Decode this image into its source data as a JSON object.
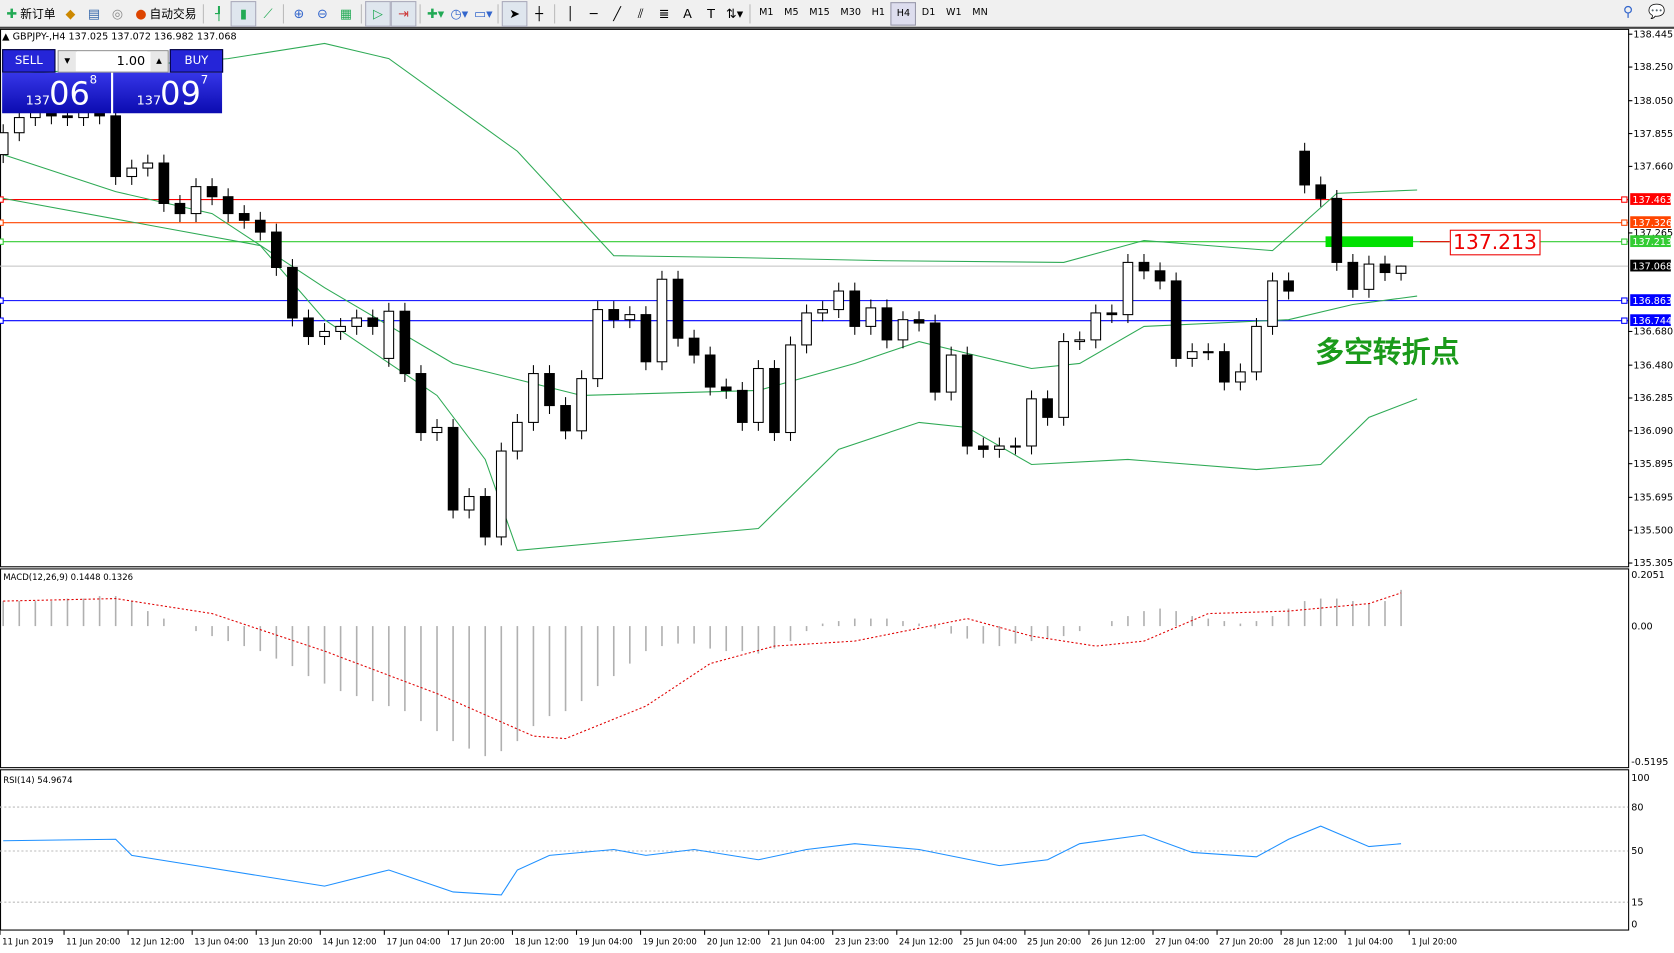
{
  "toolbar": {
    "new_order": "新订单",
    "auto_trading": "自动交易",
    "icons": [
      "new-order-icon",
      "market-watch-icon",
      "navigator-icon",
      "signals-icon",
      "auto-trading-icon",
      "bar-chart-icon",
      "candle-chart-icon",
      "line-chart-icon",
      "zoom-in-icon",
      "zoom-out-icon",
      "tile-windows-icon",
      "autoscroll-icon",
      "chart-shift-icon",
      "indicators-icon",
      "periods-icon",
      "templates-icon",
      "cursor-icon",
      "crosshair-icon",
      "vertical-line-icon",
      "horizontal-line-icon",
      "trendline-icon",
      "equidistant-channel-icon",
      "fibonacci-icon",
      "text-icon",
      "text-label-icon",
      "arrows-icon"
    ],
    "text_tool": "A",
    "label_tool": "T",
    "timeframes": [
      "M1",
      "M5",
      "M15",
      "M30",
      "H1",
      "H4",
      "D1",
      "W1",
      "MN"
    ],
    "active_timeframe": "H4"
  },
  "symbol_bar": "GBPJPY-,H4  137.025 137.072 136.982 137.068",
  "trade_panel": {
    "sell": "SELL",
    "buy": "BUY",
    "lot": "1.00",
    "bid_small": "137",
    "bid_big": "06",
    "bid_pip": "8",
    "ask_small": "137",
    "ask_big": "09",
    "ask_pip": "7"
  },
  "annotation": {
    "text": "多空转折点",
    "price_label": "137.213",
    "color": "#1a9a1a"
  },
  "colors": {
    "bull": "#ffffff",
    "bear": "#000000",
    "bands": "#2eaa55",
    "macd_hist": "#b0b0b0",
    "macd_signal": "#e00000",
    "rsi": "#1e90ff"
  },
  "chart_data": [
    {
      "type": "candlestick",
      "symbol": "GBPJPY-",
      "timeframe": "H4",
      "ylim": [
        135.305,
        138.445
      ],
      "price_ticks": [
        "138.445",
        "138.250",
        "138.050",
        "137.855",
        "137.660",
        "137.265",
        "136.680",
        "136.480",
        "136.285",
        "136.090",
        "135.895",
        "135.695",
        "135.500",
        "135.305"
      ],
      "time_labels": [
        "11 Jun 2019",
        "11 Jun 20:00",
        "12 Jun 12:00",
        "13 Jun 04:00",
        "13 Jun 20:00",
        "14 Jun 12:00",
        "17 Jun 04:00",
        "17 Jun 20:00",
        "18 Jun 12:00",
        "19 Jun 04:00",
        "19 Jun 20:00",
        "20 Jun 12:00",
        "21 Jun 04:00",
        "23 Jun 23:00",
        "24 Jun 12:00",
        "25 Jun 04:00",
        "25 Jun 20:00",
        "26 Jun 12:00",
        "27 Jun 04:00",
        "27 Jun 20:00",
        "28 Jun 12:00",
        "1 Jul 04:00",
        "1 Jul 20:00"
      ],
      "close": [
        137.86,
        137.95,
        137.98,
        137.96,
        137.95,
        137.98,
        137.96,
        137.6,
        137.65,
        137.68,
        137.44,
        137.38,
        137.54,
        137.48,
        137.38,
        137.34,
        137.27,
        137.06,
        136.76,
        136.65,
        136.68,
        136.71,
        136.76,
        136.71,
        136.8,
        136.43,
        136.08,
        136.11,
        135.62,
        135.7,
        135.46,
        135.97,
        136.14,
        136.43,
        136.24,
        136.09,
        136.4,
        136.81,
        136.75,
        136.78,
        136.5,
        136.99,
        136.64,
        136.54,
        136.35,
        136.33,
        136.14,
        136.46,
        136.08,
        136.6,
        136.79,
        136.81,
        136.92,
        136.71,
        136.82,
        136.63,
        136.75,
        136.73,
        136.32,
        136.54,
        136.0,
        135.98,
        136.0,
        136.0,
        136.28,
        136.17,
        136.62,
        136.63,
        136.79,
        136.78,
        137.09,
        137.04,
        136.98,
        136.52,
        136.56,
        136.56,
        136.38,
        136.44,
        136.71,
        136.98,
        136.92,
        137.55,
        137.47,
        137.09,
        136.93,
        137.08,
        137.03,
        137.068
      ],
      "open_overrides": {
        "0": 137.73,
        "24": 136.52,
        "81": 137.75,
        "87": 137.025
      },
      "last_bar": {
        "open": 137.025,
        "high": 137.072,
        "low": 136.982,
        "close": 137.068
      },
      "bollinger_upper": [
        [
          0,
          138.2
        ],
        [
          7,
          138.25
        ],
        [
          14,
          138.3
        ],
        [
          20,
          138.39
        ],
        [
          24,
          138.3
        ],
        [
          32,
          137.75
        ],
        [
          38,
          137.13
        ],
        [
          45,
          137.12
        ],
        [
          55,
          137.1
        ],
        [
          66,
          137.09
        ],
        [
          71,
          137.22
        ],
        [
          79,
          137.16
        ],
        [
          83,
          137.5
        ],
        [
          88,
          137.52
        ]
      ],
      "bollinger_middle": [
        [
          0,
          137.73
        ],
        [
          7,
          137.51
        ],
        [
          13,
          137.38
        ],
        [
          20,
          136.94
        ],
        [
          28,
          136.49
        ],
        [
          36,
          136.3
        ],
        [
          47,
          136.33
        ],
        [
          53,
          136.49
        ],
        [
          57,
          136.62
        ],
        [
          60,
          136.55
        ],
        [
          64,
          136.46
        ],
        [
          67,
          136.49
        ],
        [
          71,
          136.71
        ],
        [
          80,
          136.75
        ],
        [
          84,
          136.84
        ],
        [
          88,
          136.89
        ]
      ],
      "bollinger_lower": [
        [
          0,
          137.47
        ],
        [
          16,
          137.19
        ],
        [
          20,
          136.75
        ],
        [
          27,
          136.3
        ],
        [
          30,
          135.92
        ],
        [
          32,
          135.38
        ],
        [
          47,
          135.51
        ],
        [
          52,
          135.98
        ],
        [
          57,
          136.14
        ],
        [
          60,
          136.11
        ],
        [
          64,
          135.89
        ],
        [
          70,
          135.92
        ],
        [
          78,
          135.86
        ],
        [
          82,
          135.89
        ],
        [
          85,
          136.17
        ],
        [
          88,
          136.28
        ]
      ],
      "hlines": [
        {
          "price": 137.463,
          "label": "137.463",
          "color": "#ff0000"
        },
        {
          "price": 137.326,
          "label": "137.326",
          "color": "#ff4500"
        },
        {
          "price": 137.213,
          "label": "137.213",
          "color": "#33cc33"
        },
        {
          "price": 137.068,
          "label": "137.068",
          "color": "#000000",
          "line": "#c0c0c0"
        },
        {
          "price": 136.863,
          "label": "136.863",
          "color": "#0000ff"
        },
        {
          "price": 136.744,
          "label": "136.744",
          "color": "#0000ff"
        }
      ]
    },
    {
      "type": "bar",
      "title": "MACD(12,26,9) 0.1448 0.1326",
      "ylim": [
        -0.5195,
        0.2051
      ],
      "ticks": [
        "0.2051",
        "0.00",
        "-0.5195"
      ],
      "histogram": [
        0.1,
        0.1,
        0.1,
        0.1,
        0.11,
        0.11,
        0.12,
        0.12,
        0.1,
        0.06,
        0.03,
        0.0,
        -0.02,
        -0.04,
        -0.06,
        -0.08,
        -0.1,
        -0.13,
        -0.16,
        -0.2,
        -0.23,
        -0.26,
        -0.28,
        -0.3,
        -0.32,
        -0.34,
        -0.38,
        -0.42,
        -0.46,
        -0.49,
        -0.52,
        -0.5,
        -0.46,
        -0.4,
        -0.36,
        -0.34,
        -0.3,
        -0.24,
        -0.2,
        -0.15,
        -0.1,
        -0.08,
        -0.07,
        -0.07,
        -0.09,
        -0.1,
        -0.1,
        -0.11,
        -0.09,
        -0.06,
        -0.02,
        0.01,
        0.02,
        0.03,
        0.03,
        0.03,
        0.02,
        0.01,
        -0.01,
        -0.03,
        -0.05,
        -0.07,
        -0.08,
        -0.07,
        -0.06,
        -0.05,
        -0.04,
        -0.02,
        0.0,
        0.02,
        0.04,
        0.06,
        0.07,
        0.06,
        0.04,
        0.03,
        0.02,
        0.01,
        0.02,
        0.04,
        0.07,
        0.1,
        0.11,
        0.11,
        0.1,
        0.09,
        0.1,
        0.1448
      ],
      "signal": [
        [
          0,
          0.1
        ],
        [
          7,
          0.11
        ],
        [
          13,
          0.05
        ],
        [
          20,
          -0.1
        ],
        [
          27,
          -0.27
        ],
        [
          33,
          -0.44
        ],
        [
          35,
          -0.45
        ],
        [
          40,
          -0.32
        ],
        [
          44,
          -0.15
        ],
        [
          48,
          -0.08
        ],
        [
          53,
          -0.06
        ],
        [
          60,
          0.03
        ],
        [
          64,
          -0.04
        ],
        [
          68,
          -0.08
        ],
        [
          71,
          -0.06
        ],
        [
          75,
          0.05
        ],
        [
          80,
          0.06
        ],
        [
          85,
          0.09
        ],
        [
          87,
          0.1326
        ]
      ]
    },
    {
      "type": "line",
      "title": "RSI(14) 54.9674",
      "ylim": [
        0,
        100
      ],
      "ticks": [
        "100",
        "80",
        "50",
        "15",
        "0"
      ],
      "levels": [
        80,
        50,
        15
      ],
      "values": [
        [
          0,
          57
        ],
        [
          7,
          58
        ],
        [
          8,
          47
        ],
        [
          12,
          40
        ],
        [
          20,
          26
        ],
        [
          24,
          37
        ],
        [
          28,
          22
        ],
        [
          31,
          20
        ],
        [
          32,
          37
        ],
        [
          34,
          47
        ],
        [
          38,
          51
        ],
        [
          40,
          47
        ],
        [
          43,
          51
        ],
        [
          47,
          44
        ],
        [
          50,
          51
        ],
        [
          53,
          55
        ],
        [
          57,
          51
        ],
        [
          62,
          40
        ],
        [
          65,
          44
        ],
        [
          67,
          55
        ],
        [
          71,
          61
        ],
        [
          74,
          49
        ],
        [
          78,
          46
        ],
        [
          80,
          58
        ],
        [
          82,
          67
        ],
        [
          85,
          53
        ],
        [
          87,
          54.97
        ]
      ]
    }
  ]
}
